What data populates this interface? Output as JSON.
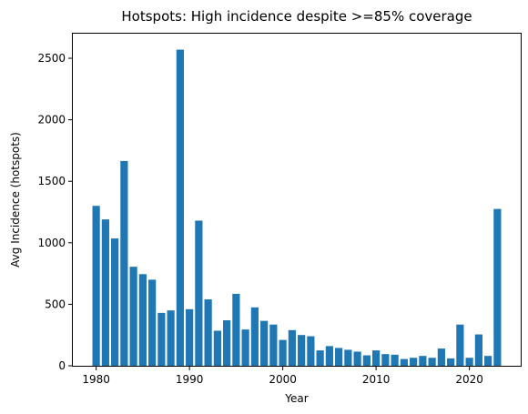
{
  "chart_data": {
    "type": "bar",
    "title": "Hotspots: High incidence despite >=85% coverage",
    "xlabel": "Year",
    "ylabel": "Avg Incidence (hotspots)",
    "x": [
      1980,
      1981,
      1982,
      1983,
      1984,
      1985,
      1986,
      1987,
      1988,
      1989,
      1990,
      1991,
      1992,
      1993,
      1994,
      1995,
      1996,
      1997,
      1998,
      1999,
      2000,
      2001,
      2002,
      2003,
      2004,
      2005,
      2006,
      2007,
      2008,
      2009,
      2010,
      2011,
      2012,
      2013,
      2014,
      2015,
      2016,
      2017,
      2018,
      2019,
      2020,
      2021,
      2022,
      2023
    ],
    "values": [
      1300,
      1190,
      1035,
      1665,
      805,
      745,
      700,
      430,
      450,
      2570,
      460,
      1180,
      540,
      285,
      370,
      585,
      295,
      475,
      365,
      335,
      210,
      290,
      250,
      240,
      125,
      160,
      145,
      130,
      115,
      85,
      125,
      95,
      90,
      55,
      65,
      80,
      65,
      140,
      60,
      335,
      65,
      255,
      80,
      1275
    ],
    "xlim": [
      1977.5,
      2025.5
    ],
    "ylim": [
      0,
      2700
    ],
    "xticks": [
      1980,
      1990,
      2000,
      2010,
      2020
    ],
    "yticks": [
      0,
      500,
      1000,
      1500,
      2000,
      2500
    ],
    "bar_color": "#1f77b4",
    "grid": false,
    "legend": "none"
  }
}
